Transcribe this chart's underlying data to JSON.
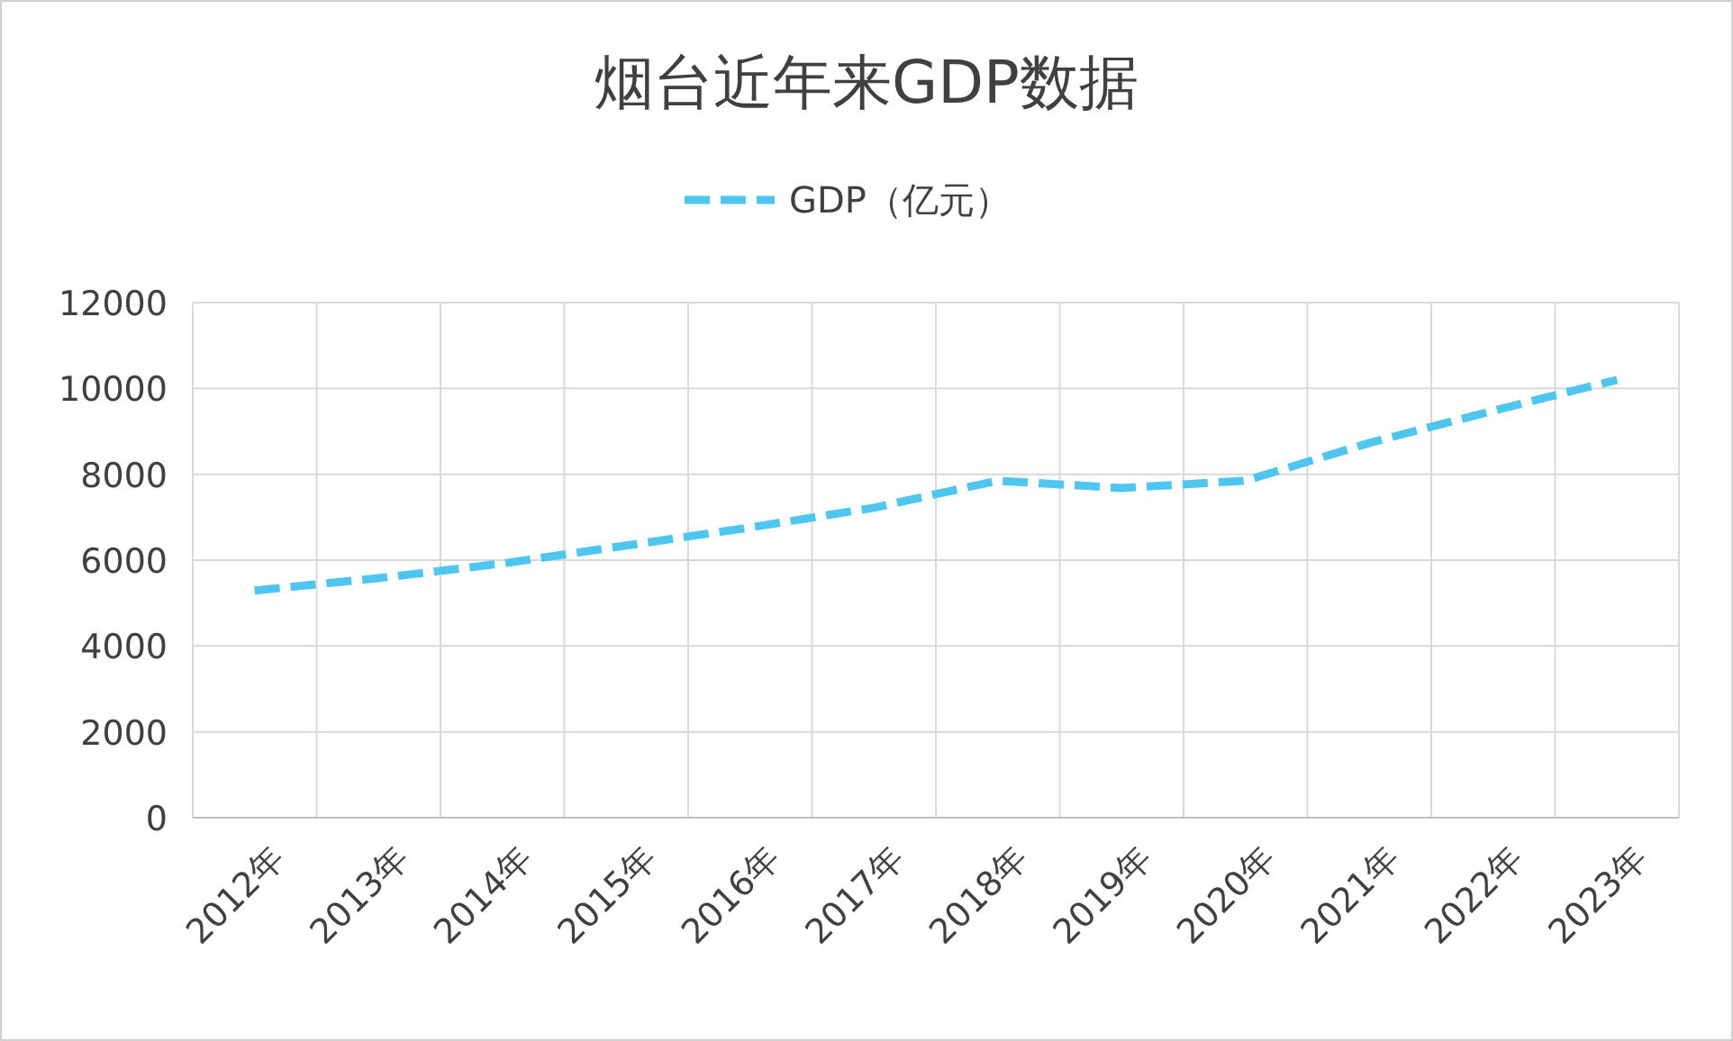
{
  "chart_data": {
    "type": "line",
    "title": "烟台近年来GDP数据",
    "categories": [
      "2012年",
      "2013年",
      "2014年",
      "2015年",
      "2016年",
      "2017年",
      "2018年",
      "2019年",
      "2020年",
      "2021年",
      "2022年",
      "2023年"
    ],
    "series": [
      {
        "name": "GDP（亿元）",
        "color": "#4fc6f0",
        "values": [
          5290,
          5580,
          5920,
          6340,
          6760,
          7220,
          7850,
          7680,
          7850,
          8730,
          9480,
          10200
        ]
      }
    ],
    "ylim": [
      0,
      12000
    ],
    "yticks": [
      0,
      2000,
      4000,
      6000,
      8000,
      10000,
      12000
    ],
    "grid": true,
    "legend": "top",
    "line_style": "dashed",
    "marker": "none"
  }
}
